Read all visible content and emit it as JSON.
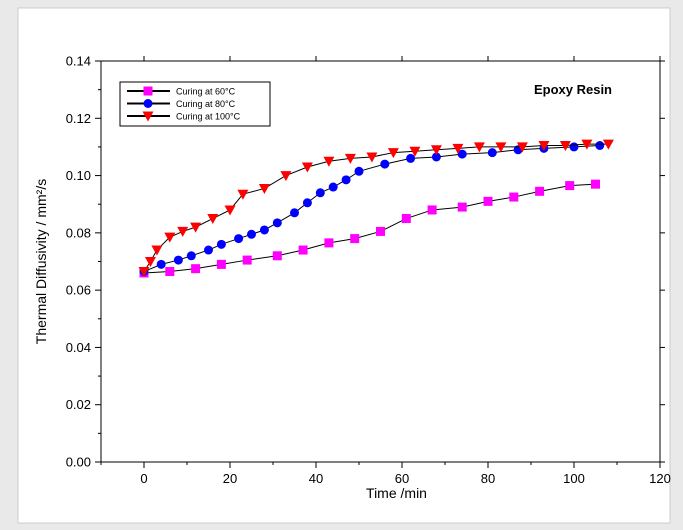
{
  "chart_data": {
    "type": "line",
    "title": "",
    "annotation": "Epoxy Resin",
    "xlabel": "Time /min",
    "ylabel": "Thermal Diffusivity / mm²/s",
    "xlim": [
      -10,
      120
    ],
    "ylim": [
      0.0,
      0.14
    ],
    "xticks": [
      0,
      20,
      40,
      60,
      80,
      100,
      120
    ],
    "yticks": [
      0.0,
      0.02,
      0.04,
      0.06,
      0.08,
      0.1,
      0.12,
      0.14
    ],
    "xtick_labels": [
      "0",
      "20",
      "40",
      "60",
      "80",
      "100",
      "120"
    ],
    "ytick_labels": [
      "0.00",
      "0.02",
      "0.04",
      "0.06",
      "0.08",
      "0.10",
      "0.12",
      "0.14"
    ],
    "grid": false,
    "legend_position": "top-left",
    "series": [
      {
        "name": "Curing at 60°C",
        "color": "#ff00ff",
        "marker": "square",
        "x": [
          0,
          6,
          12,
          18,
          24,
          31,
          37,
          43,
          49,
          55,
          61,
          67,
          74,
          80,
          86,
          92,
          99,
          105
        ],
        "y": [
          0.066,
          0.0665,
          0.0675,
          0.069,
          0.0705,
          0.072,
          0.074,
          0.0765,
          0.078,
          0.0805,
          0.085,
          0.088,
          0.089,
          0.091,
          0.0925,
          0.0945,
          0.0965,
          0.097
        ]
      },
      {
        "name": "Curing at 80°C",
        "color": "#0000ff",
        "marker": "circle",
        "x": [
          0,
          4,
          8,
          11,
          15,
          18,
          22,
          25,
          28,
          31,
          35,
          38,
          41,
          44,
          47,
          50,
          56,
          62,
          68,
          74,
          81,
          87,
          93,
          100,
          106
        ],
        "y": [
          0.0665,
          0.069,
          0.0705,
          0.072,
          0.074,
          0.076,
          0.078,
          0.0795,
          0.081,
          0.0835,
          0.087,
          0.0905,
          0.094,
          0.096,
          0.0985,
          0.1015,
          0.104,
          0.106,
          0.1065,
          0.1075,
          0.108,
          0.109,
          0.1095,
          0.11,
          0.1105
        ]
      },
      {
        "name": "Curing at 100°C",
        "color": "#ff0000",
        "marker": "triangle-down",
        "x": [
          0,
          1.5,
          3,
          6,
          9,
          12,
          16,
          20,
          23,
          28,
          33,
          38,
          43,
          48,
          53,
          58,
          63,
          68,
          73,
          78,
          83,
          88,
          93,
          98,
          103,
          108
        ],
        "y": [
          0.0665,
          0.07,
          0.074,
          0.0785,
          0.0805,
          0.082,
          0.085,
          0.088,
          0.0935,
          0.0955,
          0.1,
          0.103,
          0.105,
          0.106,
          0.1065,
          0.108,
          0.1085,
          0.109,
          0.1095,
          0.11,
          0.11,
          0.11,
          0.1105,
          0.1105,
          0.111,
          0.111
        ]
      }
    ]
  }
}
